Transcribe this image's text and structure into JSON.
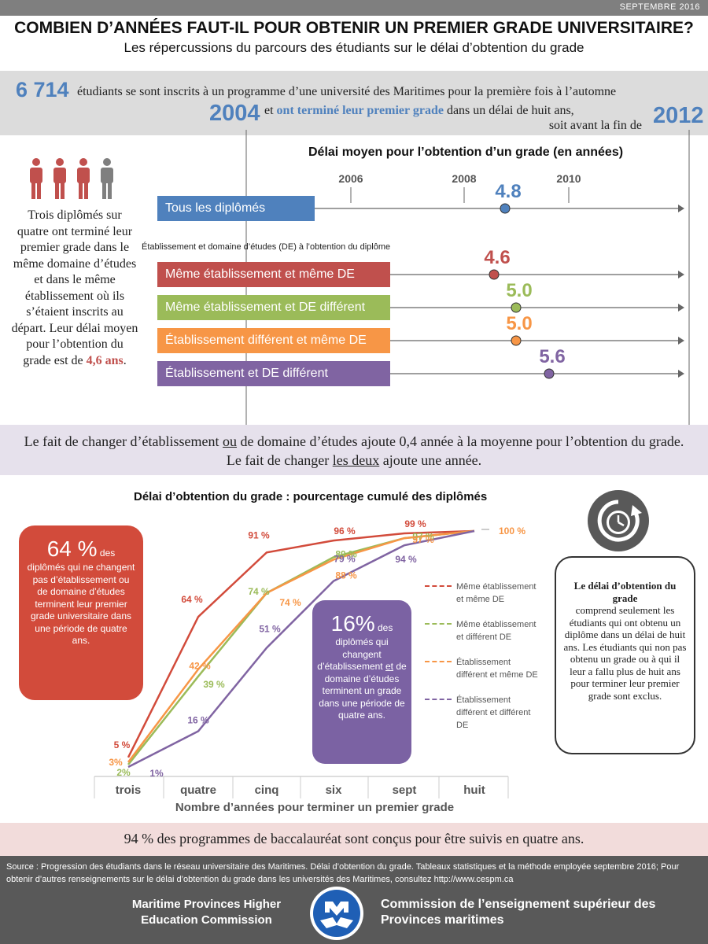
{
  "header": {
    "date": "SEPTEMBRE 2016",
    "title": "COMBIEN D’ANNÉES FAUT-IL POUR OBTENIR UN PREMIER GRADE UNIVERSITAIRE?",
    "subtitle": "Les répercussions du parcours des étudiants sur le délai d’obtention du grade"
  },
  "intro": {
    "count": "6 714",
    "line1": "étudiants se sont inscrits à un programme d’une université des Maritimes pour la première fois à l’automne",
    "year_start": "2004",
    "line2_prefix": "et",
    "line2_highlight": "ont terminé leur premier grade",
    "line2_suffix": "dans un délai de huit ans,",
    "line3": "soit avant la fin de",
    "year_end": "2012"
  },
  "left_panel": {
    "text": "Trois diplômés sur quatre ont terminé leur premier grade dans le même domaine d’études et dans le même établissement où ils s’étaient inscrits au départ.  Leur délai moyen pour l’obtention du grade est de",
    "value": "4,6 ans",
    "suffix": "."
  },
  "timeline": {
    "title": "Délai moyen pour l’obtention d’un grade (en années)",
    "de_caption": "Établissement et domaine d’études (DE) à l’obtention du diplôme",
    "years": [
      "2006",
      "2008",
      "2010"
    ]
  },
  "band2": {
    "part1": "Le fait de changer d’établissement ",
    "u1": "ou",
    "part2": " de domaine d’études ajoute 0,4 année à la moyenne pour l’obtention du grade.  Le fait de changer ",
    "u2": "les deux",
    "part3": " ajoute une année."
  },
  "cumulative": {
    "title": "Délai d’obtention du grade : pourcentage cumulé des diplômés",
    "xlabel": "Nombre d’années pour terminer un premier grade"
  },
  "red_box": {
    "big": "64 %",
    "big_suffix": " des",
    "text": "diplômés qui ne changent pas d’établissement ou de domaine d’études terminent leur premier grade universitaire dans une période de quatre ans."
  },
  "purple_box": {
    "big": "16%",
    "big_suffix": " des",
    "text1": "diplômés qui changent d’établissement",
    "u": "et",
    "text2": "de domaine d’études terminent un grade dans une période de quatre ans."
  },
  "definition": {
    "bold": "Le délai d’obtention du grade",
    "text": "comprend seulement les étudiants qui ont obtenu un diplôme dans un délai de huit ans. Les étudiants qui non pas obtenu un grade ou à qui il leur a fallu plus de huit ans pour terminer leur premier grade sont exclus."
  },
  "band3": {
    "text": "94 % des programmes de baccalauréat sont conçus pour être suivis en quatre ans."
  },
  "footer": {
    "source": "Source : Progression des étudiants dans le réseau universitaire des Maritimes. Délai d’obtention du grade. Tableaux statistiques et la méthode employée septembre 2016; Pour obtenir d’autres renseignements sur le délai d’obtention du grade dans les universités des Maritimes, consultez http://www.cespm.ca",
    "org_en": "Maritime Provinces Higher Education Commission",
    "org_fr": "Commission de l’enseignement supérieur des Provinces maritimes"
  },
  "colors": {
    "blue": "#4f81bd",
    "red": "#c0504d",
    "green": "#9bbb59",
    "orange": "#f79646",
    "purple": "#8064a2"
  },
  "chart_data": [
    {
      "type": "scatter",
      "title": "Délai moyen pour l’obtention d’un grade (en années)",
      "ylabel": "Établissement et domaine d’études (DE) à l’obtention du diplôme",
      "categories": [
        "Tous les diplômés",
        "Même établissement et même DE",
        "Même établissement et DE différent",
        "Établissement différent et même DE",
        "Établissement et DE différent"
      ],
      "values": [
        4.8,
        4.6,
        5.0,
        5.0,
        5.6
      ],
      "value_labels": [
        "4.8",
        "4.6",
        "5.0",
        "5.0",
        "5.6"
      ],
      "colors": [
        "#4f81bd",
        "#c0504d",
        "#9bbb59",
        "#f79646",
        "#8064a2"
      ],
      "x_ticks": [
        "2006",
        "2008",
        "2010"
      ]
    },
    {
      "type": "line",
      "title": "Délai d’obtention du grade : pourcentage cumulé des diplômés",
      "xlabel": "Nombre d’années pour terminer un premier grade",
      "ylabel": "",
      "categories": [
        "trois",
        "quatre",
        "cinq",
        "six",
        "sept",
        "huit"
      ],
      "ylim": [
        0,
        100
      ],
      "legend": "right",
      "series": [
        {
          "name": "Même établissement et même DE",
          "color": "#d24b3b",
          "values": [
            5,
            64,
            91,
            96,
            99,
            100
          ],
          "labels": [
            "5 %",
            "64 %",
            "91 %",
            "96 %",
            "99 %",
            ""
          ]
        },
        {
          "name": "Même établissement et différent DE",
          "color": "#9bbb59",
          "values": [
            2,
            39,
            74,
            89,
            97,
            100
          ],
          "labels": [
            "2%",
            "39 %",
            "74 %",
            "89 %",
            "97 %",
            ""
          ]
        },
        {
          "name": "Établissement différent et même DE",
          "color": "#f79646",
          "values": [
            3,
            42,
            74,
            88,
            97,
            100
          ],
          "labels": [
            "3%",
            "42 %",
            "74 %",
            "88 %",
            "97 %",
            "100 %"
          ]
        },
        {
          "name": "Établissement différent et différent DE",
          "color": "#8064a2",
          "values": [
            1,
            16,
            51,
            79,
            94,
            100
          ],
          "labels": [
            "1%",
            "16 %",
            "51 %",
            "79 %",
            "94 %",
            ""
          ]
        }
      ]
    }
  ]
}
